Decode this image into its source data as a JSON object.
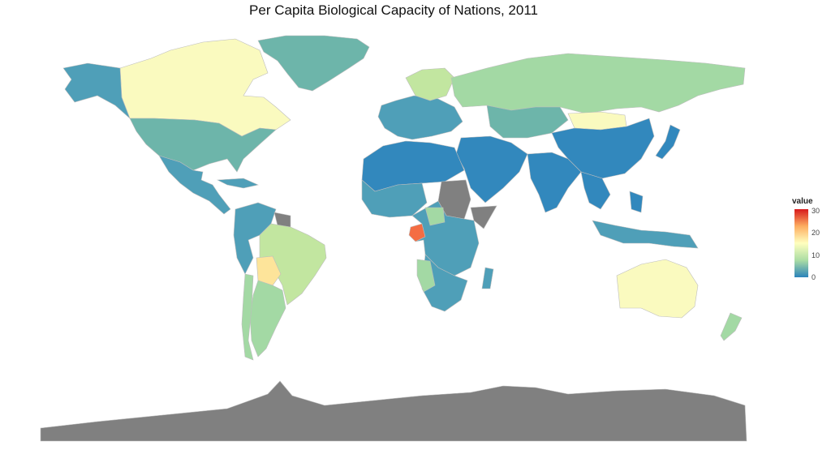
{
  "title": "Per Capita Biological Capacity of Nations, 2011",
  "legend": {
    "title": "value",
    "ticks": [
      "30",
      "20",
      "10",
      "0"
    ],
    "gradient": [
      "#d7191c",
      "#fdae61",
      "#ffffbf",
      "#abdda4",
      "#2b83ba"
    ]
  },
  "colors": {
    "very_low": "#3288bd",
    "low": "#4f9fb8",
    "low_mid": "#6db5aa",
    "mid": "#a3d9a4",
    "mid_high": "#c2e6a0",
    "high": "#fafabf",
    "higher": "#fde49a",
    "very_high": "#f46d43",
    "no_data": "#808080"
  }
}
